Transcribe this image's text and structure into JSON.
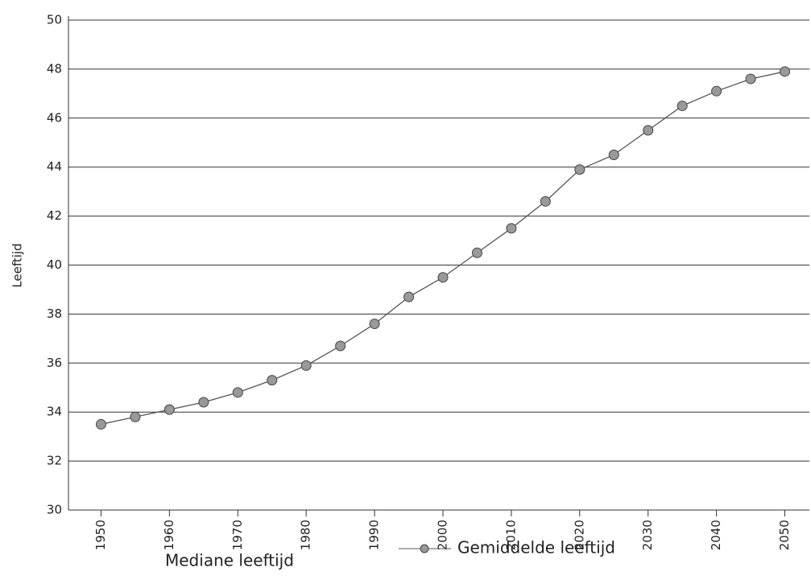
{
  "chart_data": {
    "type": "line",
    "y_label": "Leeftijd",
    "x_label": "Mediane leeftijd",
    "x": [
      1950,
      1955,
      1960,
      1965,
      1970,
      1975,
      1980,
      1985,
      1990,
      1995,
      2000,
      2005,
      2010,
      2015,
      2020,
      2025,
      2030,
      2035,
      2040,
      2045,
      2050
    ],
    "series": [
      {
        "name": "Gemiddelde leeftijd",
        "color": "#555555",
        "values": [
          33.5,
          33.8,
          34.1,
          34.4,
          34.8,
          35.3,
          35.9,
          36.7,
          37.6,
          38.7,
          39.5,
          40.5,
          41.5,
          42.6,
          43.9,
          44.5,
          45.5,
          46.5,
          47.1,
          47.6,
          47.9
        ]
      }
    ],
    "xlim": [
      1947,
      2053
    ],
    "xticks": [
      1950,
      1960,
      1970,
      1980,
      1990,
      2000,
      2010,
      2020,
      2030,
      2040,
      2050
    ],
    "ylim": [
      30,
      50
    ],
    "yticks": [
      30,
      32,
      34,
      36,
      38,
      40,
      42,
      44,
      46,
      48,
      50
    ],
    "grid": true
  }
}
